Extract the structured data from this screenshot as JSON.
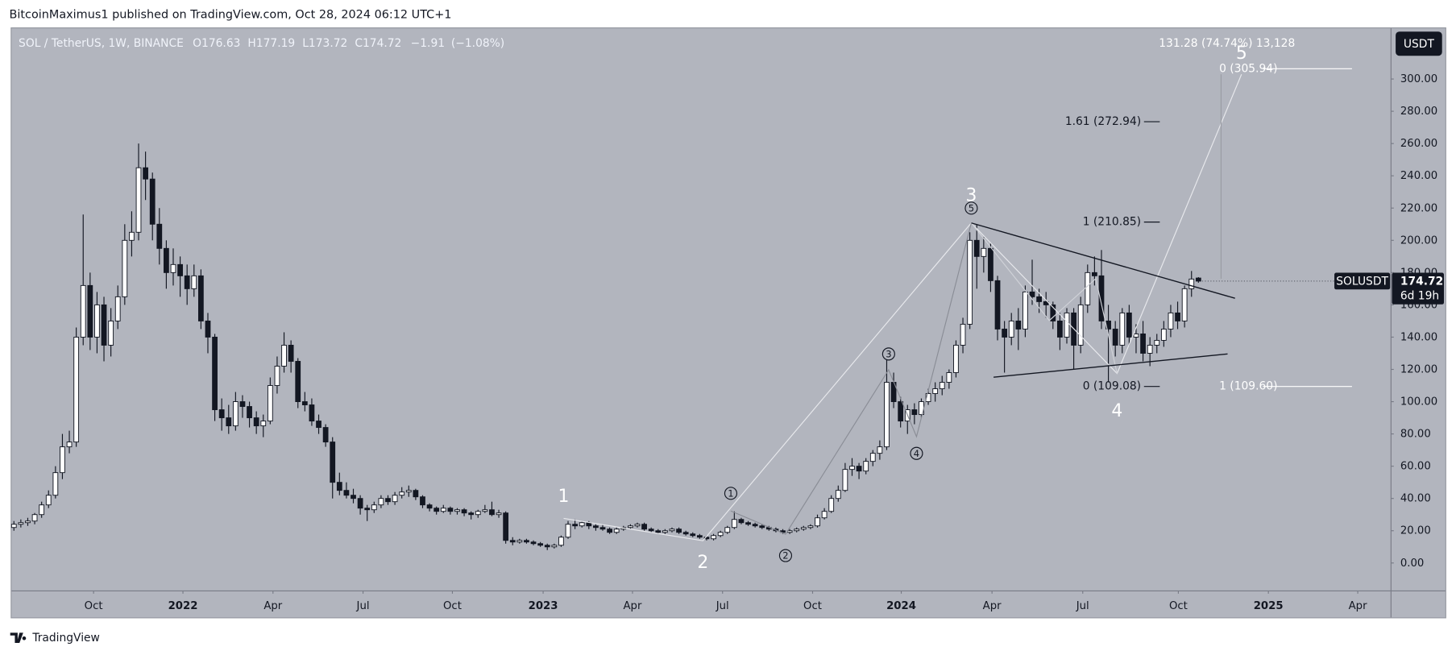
{
  "header": {
    "published": "BitcoinMaximus1 published on TradingView.com, Oct 28, 2024 06:12 UTC+1",
    "brand": "TradingView"
  },
  "chart_data": {
    "type": "candlestick",
    "legend": {
      "symbol": "SOL / TetherUS, 1W, BINANCE",
      "fields": [
        {
          "key": "O",
          "value": 176.63
        },
        {
          "key": "H",
          "value": 177.19
        },
        {
          "key": "L",
          "value": 173.72
        },
        {
          "key": "C",
          "value": 174.72
        }
      ],
      "change": {
        "value": -1.91,
        "label": "−1.91"
      },
      "change_pct": {
        "value": -1.08,
        "label": "(−1.08%)"
      }
    },
    "currency": "USDT",
    "price_tag": {
      "symbol": "SOLUSDT",
      "price": 174.72,
      "countdown": "6d 19h"
    },
    "annotations": {
      "measure": "131.28 (74.74%) 13,128",
      "fib_right_top": "0 (305.94)",
      "fib_161": "1.61 (272.94)",
      "fib_1": "1 (210.85)",
      "fib_0": "0 (109.08)",
      "fib_right_bottom": "1 (109.60)"
    },
    "waves": {
      "major": [
        "1",
        "2",
        "3",
        "4",
        "5"
      ],
      "minor": [
        "1",
        "2",
        "3",
        "4",
        "5"
      ]
    },
    "grid": false,
    "up_color": "#ffffff",
    "down_color": "#131722",
    "xlim": [
      -0.4,
      198.8
    ],
    "xticks": [
      {
        "value": 11.5,
        "label": "Oct"
      },
      {
        "value": 24.4,
        "label": "2022"
      },
      {
        "value": 37.4,
        "label": "Apr"
      },
      {
        "value": 50.4,
        "label": "Jul"
      },
      {
        "value": 63.3,
        "label": "Oct"
      },
      {
        "value": 76.4,
        "label": "2023"
      },
      {
        "value": 89.3,
        "label": "Apr"
      },
      {
        "value": 102.3,
        "label": "Jul"
      },
      {
        "value": 115.3,
        "label": "Oct"
      },
      {
        "value": 128.1,
        "label": "2024"
      },
      {
        "value": 141.2,
        "label": "Apr"
      },
      {
        "value": 154.3,
        "label": "Jul"
      },
      {
        "value": 168.1,
        "label": "Oct"
      },
      {
        "value": 181.1,
        "label": "2025"
      },
      {
        "value": 194.0,
        "label": "Apr"
      }
    ],
    "ylim": [
      -17.3,
      331.7
    ],
    "yticks": [
      {
        "value": 0,
        "label": "0.00"
      },
      {
        "value": 20,
        "label": "20.00"
      },
      {
        "value": 40,
        "label": "40.00"
      },
      {
        "value": 60,
        "label": "60.00"
      },
      {
        "value": 80,
        "label": "80.00"
      },
      {
        "value": 100,
        "label": "100.00"
      },
      {
        "value": 120,
        "label": "120.00"
      },
      {
        "value": 140,
        "label": "140.00"
      },
      {
        "value": 160,
        "label": "160.00"
      },
      {
        "value": 180,
        "label": "180.00"
      },
      {
        "value": 200,
        "label": "200.00"
      },
      {
        "value": 220,
        "label": "220.00"
      },
      {
        "value": 240,
        "label": "240.00"
      },
      {
        "value": 260,
        "label": "260.00"
      },
      {
        "value": 280,
        "label": "280.00"
      },
      {
        "value": 300,
        "label": "300.00"
      }
    ],
    "candles": [
      [
        22,
        26,
        20,
        24
      ],
      [
        24,
        27,
        22,
        25
      ],
      [
        25,
        28,
        23,
        26
      ],
      [
        26,
        31,
        24,
        30
      ],
      [
        30,
        38,
        28,
        36
      ],
      [
        36,
        45,
        34,
        42
      ],
      [
        42,
        60,
        40,
        56
      ],
      [
        56,
        80,
        52,
        72
      ],
      [
        72,
        82,
        68,
        75
      ],
      [
        75,
        146,
        72,
        140
      ],
      [
        140,
        216,
        135,
        172
      ],
      [
        172,
        180,
        132,
        140
      ],
      [
        140,
        168,
        130,
        160
      ],
      [
        160,
        165,
        125,
        135
      ],
      [
        135,
        158,
        128,
        150
      ],
      [
        150,
        172,
        145,
        165
      ],
      [
        165,
        210,
        160,
        200
      ],
      [
        200,
        218,
        190,
        205
      ],
      [
        205,
        260,
        200,
        245
      ],
      [
        245,
        255,
        225,
        238
      ],
      [
        238,
        242,
        200,
        210
      ],
      [
        210,
        220,
        185,
        195
      ],
      [
        195,
        200,
        170,
        180
      ],
      [
        180,
        195,
        172,
        185
      ],
      [
        185,
        190,
        165,
        178
      ],
      [
        178,
        185,
        160,
        170
      ],
      [
        170,
        185,
        165,
        178
      ],
      [
        178,
        182,
        145,
        150
      ],
      [
        150,
        155,
        130,
        140
      ],
      [
        140,
        142,
        88,
        95
      ],
      [
        95,
        102,
        82,
        90
      ],
      [
        90,
        98,
        80,
        85
      ],
      [
        85,
        106,
        82,
        100
      ],
      [
        100,
        104,
        90,
        97
      ],
      [
        97,
        100,
        84,
        90
      ],
      [
        90,
        94,
        80,
        85
      ],
      [
        85,
        92,
        78,
        88
      ],
      [
        88,
        115,
        86,
        110
      ],
      [
        110,
        128,
        105,
        122
      ],
      [
        122,
        143,
        118,
        135
      ],
      [
        135,
        138,
        118,
        125
      ],
      [
        125,
        127,
        96,
        100
      ],
      [
        100,
        106,
        94,
        98
      ],
      [
        98,
        102,
        85,
        88
      ],
      [
        88,
        92,
        80,
        84
      ],
      [
        84,
        86,
        72,
        75
      ],
      [
        75,
        78,
        40,
        50
      ],
      [
        50,
        56,
        42,
        45
      ],
      [
        45,
        50,
        40,
        42
      ],
      [
        42,
        46,
        37,
        40
      ],
      [
        40,
        42,
        30,
        34
      ],
      [
        34,
        36,
        26,
        33
      ],
      [
        33,
        38,
        31,
        36
      ],
      [
        36,
        42,
        34,
        40
      ],
      [
        40,
        42,
        36,
        38
      ],
      [
        38,
        44,
        36,
        42
      ],
      [
        42,
        47,
        40,
        44
      ],
      [
        44,
        48,
        41,
        45
      ],
      [
        45,
        46,
        39,
        41
      ],
      [
        41,
        42,
        34,
        36
      ],
      [
        36,
        37,
        32,
        34
      ],
      [
        34,
        35,
        30,
        32
      ],
      [
        32,
        36,
        31,
        34
      ],
      [
        34,
        35,
        30,
        32
      ],
      [
        32,
        34,
        30,
        33
      ],
      [
        33,
        34,
        29,
        31
      ],
      [
        31,
        32,
        27,
        30
      ],
      [
        30,
        33,
        28,
        32
      ],
      [
        32,
        36,
        31,
        33
      ],
      [
        33,
        38,
        29,
        30
      ],
      [
        30,
        33,
        28,
        31
      ],
      [
        31,
        32,
        12,
        14
      ],
      [
        14,
        16,
        11,
        13
      ],
      [
        13,
        15,
        12,
        14
      ],
      [
        14,
        15,
        12,
        13
      ],
      [
        13,
        14,
        11,
        12
      ],
      [
        12,
        13,
        10,
        11
      ],
      [
        11,
        12,
        8,
        10
      ],
      [
        10,
        12,
        9,
        11
      ],
      [
        11,
        17,
        10,
        16
      ],
      [
        16,
        26,
        15,
        24
      ],
      [
        24,
        27,
        21,
        23
      ],
      [
        23,
        26,
        22,
        25
      ],
      [
        25,
        26,
        21,
        23
      ],
      [
        23,
        24,
        20,
        22
      ],
      [
        22,
        24,
        20,
        21
      ],
      [
        21,
        22,
        18,
        19
      ],
      [
        19,
        22,
        18,
        21
      ],
      [
        21,
        23,
        20,
        22
      ],
      [
        22,
        24,
        21,
        23
      ],
      [
        23,
        25,
        22,
        24
      ],
      [
        24,
        25,
        20,
        21
      ],
      [
        21,
        22,
        19,
        20
      ],
      [
        20,
        21,
        18,
        19
      ],
      [
        19,
        21,
        18,
        20
      ],
      [
        20,
        22,
        19,
        21
      ],
      [
        21,
        22,
        18,
        19
      ],
      [
        19,
        20,
        17,
        18
      ],
      [
        18,
        19,
        16,
        17
      ],
      [
        17,
        18,
        15,
        16
      ],
      [
        16,
        17,
        14,
        15
      ],
      [
        15,
        18,
        14,
        17
      ],
      [
        17,
        20,
        16,
        19
      ],
      [
        19,
        23,
        18,
        22
      ],
      [
        22,
        32,
        21,
        27
      ],
      [
        27,
        28,
        24,
        25
      ],
      [
        25,
        26,
        23,
        24
      ],
      [
        24,
        25,
        22,
        23
      ],
      [
        23,
        24,
        21,
        22
      ],
      [
        22,
        23,
        20,
        21
      ],
      [
        21,
        22,
        19,
        20
      ],
      [
        20,
        21,
        18,
        19
      ],
      [
        19,
        21,
        18,
        20
      ],
      [
        20,
        22,
        19,
        21
      ],
      [
        21,
        23,
        20,
        22
      ],
      [
        22,
        24,
        21,
        23
      ],
      [
        23,
        30,
        22,
        28
      ],
      [
        28,
        34,
        27,
        32
      ],
      [
        32,
        42,
        31,
        40
      ],
      [
        40,
        48,
        38,
        45
      ],
      [
        45,
        62,
        44,
        58
      ],
      [
        58,
        65,
        54,
        60
      ],
      [
        60,
        62,
        52,
        57
      ],
      [
        57,
        65,
        55,
        63
      ],
      [
        63,
        70,
        60,
        68
      ],
      [
        68,
        76,
        64,
        72
      ],
      [
        72,
        126,
        70,
        112
      ],
      [
        112,
        118,
        96,
        100
      ],
      [
        100,
        103,
        84,
        88
      ],
      [
        88,
        98,
        80,
        95
      ],
      [
        95,
        99,
        86,
        92
      ],
      [
        92,
        102,
        90,
        100
      ],
      [
        100,
        108,
        98,
        105
      ],
      [
        105,
        112,
        100,
        108
      ],
      [
        108,
        116,
        104,
        112
      ],
      [
        112,
        120,
        108,
        118
      ],
      [
        118,
        138,
        115,
        135
      ],
      [
        135,
        152,
        130,
        148
      ],
      [
        148,
        205,
        145,
        200
      ],
      [
        200,
        210,
        170,
        190
      ],
      [
        190,
        202,
        180,
        195
      ],
      [
        195,
        198,
        168,
        175
      ],
      [
        175,
        178,
        138,
        145
      ],
      [
        145,
        150,
        118,
        140
      ],
      [
        140,
        155,
        135,
        150
      ],
      [
        150,
        158,
        132,
        145
      ],
      [
        145,
        172,
        140,
        168
      ],
      [
        168,
        188,
        160,
        165
      ],
      [
        165,
        170,
        155,
        162
      ],
      [
        162,
        168,
        152,
        160
      ],
      [
        160,
        162,
        145,
        150
      ],
      [
        150,
        155,
        132,
        140
      ],
      [
        140,
        158,
        136,
        155
      ],
      [
        155,
        158,
        120,
        135
      ],
      [
        135,
        165,
        130,
        160
      ],
      [
        160,
        185,
        155,
        180
      ],
      [
        180,
        190,
        172,
        178
      ],
      [
        178,
        194,
        145,
        150
      ],
      [
        150,
        160,
        112,
        145
      ],
      [
        145,
        150,
        128,
        135
      ],
      [
        135,
        158,
        130,
        155
      ],
      [
        155,
        160,
        135,
        140
      ],
      [
        140,
        148,
        130,
        142
      ],
      [
        142,
        150,
        125,
        130
      ],
      [
        130,
        140,
        122,
        135
      ],
      [
        135,
        142,
        130,
        138
      ],
      [
        138,
        150,
        134,
        145
      ],
      [
        145,
        160,
        140,
        155
      ],
      [
        155,
        162,
        145,
        150
      ],
      [
        150,
        172,
        146,
        170
      ],
      [
        170,
        181,
        165,
        176
      ],
      [
        176.63,
        177.19,
        173.72,
        174.72
      ]
    ]
  }
}
